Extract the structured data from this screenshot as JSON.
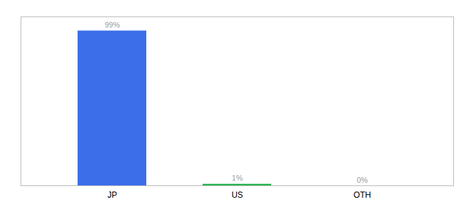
{
  "chart_data": {
    "type": "bar",
    "categories": [
      "JP",
      "US",
      "OTH"
    ],
    "values": [
      99,
      1,
      0
    ],
    "value_labels": [
      "99%",
      "1%",
      "0%"
    ],
    "colors": [
      "#3d6eea",
      "#22b14c",
      "#3d6eea"
    ],
    "ylim": [
      0,
      108
    ],
    "data_labels": true,
    "tick_labels": "x"
  }
}
